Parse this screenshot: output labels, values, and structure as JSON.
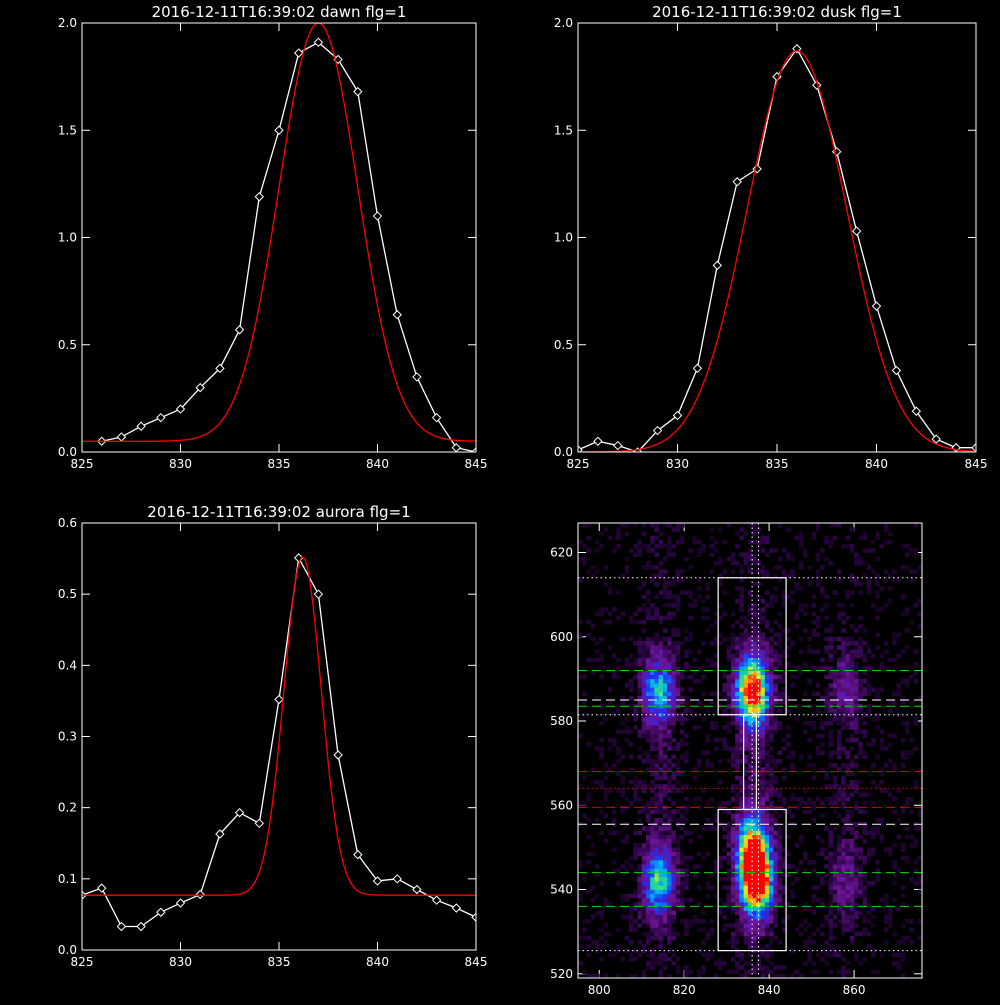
{
  "chart_data": [
    {
      "type": "line",
      "title": "2016-12-11T16:39:02 dawn flg=1",
      "xlim": [
        825,
        845
      ],
      "ylim": [
        0,
        2.0
      ],
      "xticks": [
        "825",
        "830",
        "835",
        "840",
        "845"
      ],
      "yticks": [
        "0.0",
        "0.5",
        "1.0",
        "1.5",
        "2.0"
      ],
      "grid": false,
      "series": [
        {
          "role": "observed",
          "color": "#ffffff",
          "marker": "diamond",
          "x": [
            826,
            827,
            828,
            829,
            830,
            831,
            832,
            833,
            834,
            835,
            836,
            837,
            838,
            839,
            840,
            841,
            842,
            843,
            844,
            845
          ],
          "y": [
            0.05,
            0.07,
            0.12,
            0.16,
            0.2,
            0.3,
            0.39,
            0.57,
            1.19,
            1.5,
            1.86,
            1.91,
            1.83,
            1.68,
            1.1,
            0.64,
            0.35,
            0.16,
            0.02,
            0.0
          ]
        },
        {
          "role": "fit",
          "color": "#ff0000",
          "marker": "none",
          "gaussian": {
            "amplitude": 1.95,
            "center": 837.0,
            "sigma": 2.0,
            "baseline": 0.05
          }
        }
      ]
    },
    {
      "type": "line",
      "title": "2016-12-11T16:39:02 dusk flg=1",
      "xlim": [
        825,
        845
      ],
      "ylim": [
        0,
        2.0
      ],
      "xticks": [
        "825",
        "830",
        "835",
        "840",
        "845"
      ],
      "yticks": [
        "0.0",
        "0.5",
        "1.0",
        "1.5",
        "2.0"
      ],
      "grid": false,
      "series": [
        {
          "role": "observed",
          "color": "#ffffff",
          "marker": "diamond",
          "x": [
            825,
            826,
            827,
            828,
            829,
            830,
            831,
            832,
            833,
            834,
            835,
            836,
            837,
            838,
            839,
            840,
            841,
            842,
            843,
            844,
            845
          ],
          "y": [
            0.01,
            0.05,
            0.03,
            0.0,
            0.1,
            0.17,
            0.39,
            0.87,
            1.26,
            1.32,
            1.75,
            1.88,
            1.71,
            1.4,
            1.03,
            0.68,
            0.38,
            0.19,
            0.06,
            0.02,
            0.02
          ]
        },
        {
          "role": "fit",
          "color": "#ff0000",
          "marker": "none",
          "gaussian": {
            "amplitude": 1.87,
            "center": 836.0,
            "sigma": 2.5,
            "baseline": 0.0
          }
        }
      ]
    },
    {
      "type": "line",
      "title": "2016-12-11T16:39:02 aurora flg=1",
      "xlim": [
        825,
        845
      ],
      "ylim": [
        0,
        0.6
      ],
      "xticks": [
        "825",
        "830",
        "835",
        "840",
        "845"
      ],
      "yticks": [
        "0.0",
        "0.1",
        "0.2",
        "0.3",
        "0.4",
        "0.5",
        "0.6"
      ],
      "grid": false,
      "series": [
        {
          "role": "observed",
          "color": "#ffffff",
          "marker": "diamond",
          "x": [
            825,
            826,
            827,
            828,
            829,
            830,
            831,
            832,
            833,
            834,
            835,
            836,
            837,
            838,
            839,
            840,
            841,
            842,
            843,
            844,
            845
          ],
          "y": [
            0.077,
            0.087,
            0.033,
            0.033,
            0.053,
            0.066,
            0.078,
            0.163,
            0.193,
            0.178,
            0.352,
            0.551,
            0.5,
            0.274,
            0.134,
            0.097,
            0.1,
            0.085,
            0.07,
            0.059,
            0.046
          ]
        },
        {
          "role": "fit",
          "color": "#ff0000",
          "marker": "none",
          "gaussian": {
            "amplitude": 0.475,
            "center": 836.2,
            "sigma": 0.95,
            "baseline": 0.077
          }
        }
      ]
    },
    {
      "type": "heatmap",
      "title": "",
      "xlim": [
        795,
        876
      ],
      "ylim": [
        519,
        627
      ],
      "xticks": [
        "800",
        "820",
        "840",
        "860"
      ],
      "yticks": [
        "520",
        "540",
        "560",
        "580",
        "600",
        "620"
      ],
      "colormap": "rainbow",
      "colors": {
        "low": "#3a0a5a",
        "high": "#ff0000"
      },
      "blobs": [
        {
          "x": 814,
          "y": 587,
          "peak": 0.55
        },
        {
          "x": 814,
          "y": 542,
          "peak": 0.6
        },
        {
          "x": 836,
          "y": 587,
          "peak": 0.95
        },
        {
          "x": 837,
          "y": 542,
          "peak": 1.0
        },
        {
          "x": 836,
          "y": 550,
          "peak": 0.7
        },
        {
          "x": 858,
          "y": 588,
          "peak": 0.25
        },
        {
          "x": 858,
          "y": 543,
          "peak": 0.22
        }
      ],
      "boxes": [
        {
          "x0": 828,
          "x1": 844,
          "y0": 581.5,
          "y1": 614
        },
        {
          "x0": 828,
          "x1": 844,
          "y0": 525.5,
          "y1": 559
        },
        {
          "x0": 834,
          "x1": 837,
          "y0": 559,
          "y1": 581.5
        }
      ],
      "hlines": [
        {
          "y": 614,
          "color": "#ffffff",
          "style": "dotted"
        },
        {
          "y": 592,
          "color": "#00dd00",
          "style": "dashed"
        },
        {
          "y": 585,
          "color": "#ffffff",
          "style": "dashed"
        },
        {
          "y": 583.5,
          "color": "#00dd00",
          "style": "dashed"
        },
        {
          "y": 581.5,
          "color": "#ffffff",
          "style": "dotted"
        },
        {
          "y": 568,
          "color": "#dd0000",
          "style": "dashed"
        },
        {
          "y": 564,
          "color": "#dd0000",
          "style": "dotted"
        },
        {
          "y": 559.5,
          "color": "#dd0000",
          "style": "dashed"
        },
        {
          "y": 555.5,
          "color": "#ffffff",
          "style": "dashed"
        },
        {
          "y": 544,
          "color": "#00dd00",
          "style": "dashed"
        },
        {
          "y": 536,
          "color": "#00dd00",
          "style": "dashed"
        },
        {
          "y": 525.5,
          "color": "#ffffff",
          "style": "dotted"
        }
      ],
      "vlines": [
        {
          "x": 836,
          "color": "#ffffff",
          "style": "dotted"
        },
        {
          "x": 837.5,
          "color": "#ffffff",
          "style": "dotted"
        }
      ]
    }
  ]
}
